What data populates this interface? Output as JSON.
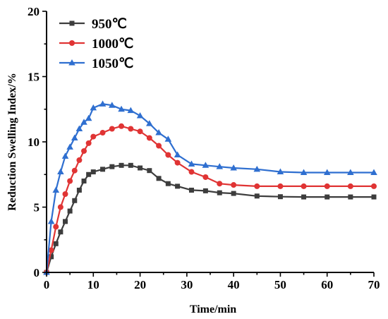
{
  "chart_data": {
    "type": "line",
    "xlabel": "Time/min",
    "ylabel": "Reduction Swelling Index/%",
    "xlim": [
      0,
      70
    ],
    "ylim": [
      0,
      20
    ],
    "xticks": [
      "0",
      "10",
      "20",
      "30",
      "40",
      "50",
      "60",
      "70"
    ],
    "yticks": [
      "0",
      "5",
      "10",
      "15",
      "20"
    ],
    "grid": false,
    "legend_position": "top-left",
    "series": [
      {
        "name": "950℃",
        "color": "#3d3d3d",
        "marker": "square",
        "x": [
          0,
          1,
          2,
          3,
          4,
          5,
          6,
          7,
          8,
          9,
          10,
          12,
          14,
          16,
          18,
          20,
          22,
          24,
          26,
          28,
          31,
          34,
          37,
          40,
          45,
          50,
          55,
          60,
          65,
          70
        ],
        "y": [
          0,
          1.2,
          2.2,
          3.1,
          3.9,
          4.7,
          5.5,
          6.3,
          7.0,
          7.5,
          7.7,
          7.9,
          8.1,
          8.2,
          8.2,
          8.0,
          7.8,
          7.2,
          6.8,
          6.6,
          6.3,
          6.25,
          6.1,
          6.05,
          5.85,
          5.8,
          5.78,
          5.78,
          5.78,
          5.78
        ]
      },
      {
        "name": "1000℃",
        "color": "#e03434",
        "marker": "circle",
        "x": [
          0,
          1,
          2,
          3,
          4,
          5,
          6,
          7,
          8,
          9,
          10,
          12,
          14,
          16,
          18,
          20,
          22,
          24,
          26,
          28,
          31,
          34,
          37,
          40,
          45,
          50,
          55,
          60,
          65,
          70
        ],
        "y": [
          0,
          1.7,
          3.5,
          5.0,
          6.0,
          7.0,
          7.8,
          8.6,
          9.3,
          9.9,
          10.4,
          10.7,
          11.0,
          11.2,
          11.0,
          10.8,
          10.3,
          9.7,
          9.0,
          8.4,
          7.7,
          7.3,
          6.8,
          6.7,
          6.6,
          6.6,
          6.6,
          6.6,
          6.6,
          6.6
        ]
      },
      {
        "name": "1050℃",
        "color": "#2f6fd0",
        "marker": "triangle",
        "x": [
          0,
          1,
          2,
          3,
          4,
          5,
          6,
          7,
          8,
          9,
          10,
          12,
          14,
          16,
          18,
          20,
          22,
          24,
          26,
          28,
          31,
          34,
          37,
          40,
          45,
          50,
          55,
          60,
          65,
          70
        ],
        "y": [
          0,
          3.9,
          6.3,
          7.7,
          8.9,
          9.6,
          10.3,
          11.0,
          11.5,
          11.8,
          12.6,
          12.9,
          12.8,
          12.5,
          12.4,
          12.0,
          11.4,
          10.7,
          10.2,
          9.0,
          8.3,
          8.2,
          8.1,
          8.0,
          7.9,
          7.7,
          7.65,
          7.65,
          7.65,
          7.65
        ]
      }
    ]
  }
}
